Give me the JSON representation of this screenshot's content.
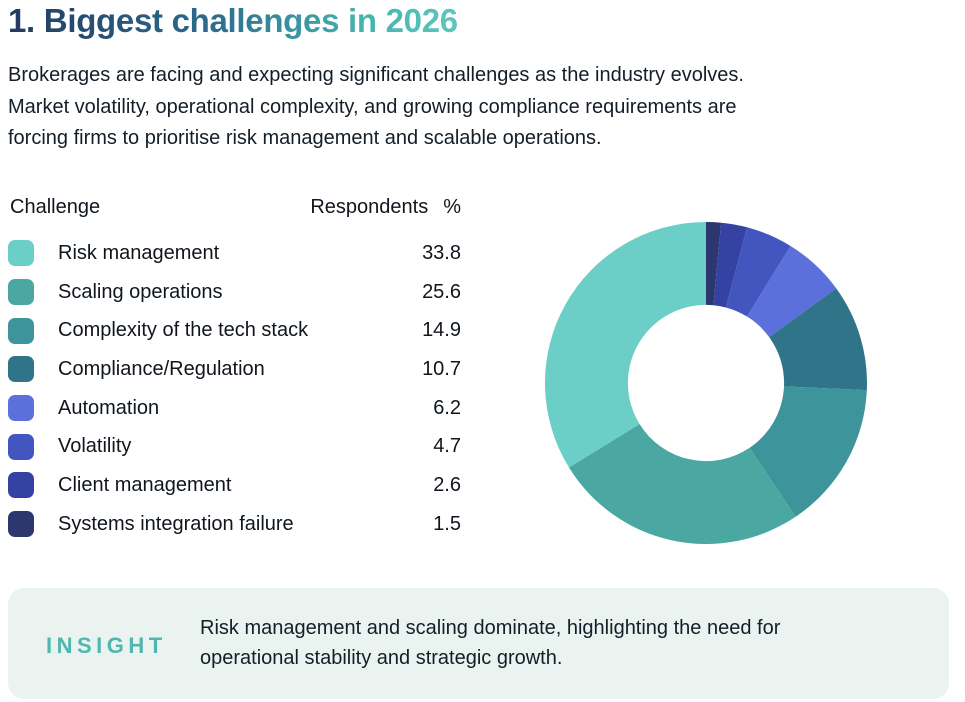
{
  "page": {
    "title": "1. Biggest challenges in 2026",
    "intro_lines": [
      "Brokerages are facing and expecting significant challenges as the industry evolves.",
      "Market volatility, operational complexity, and growing compliance requirements are",
      "forcing firms to prioritise risk management and scalable operations."
    ]
  },
  "table": {
    "headers": {
      "challenge": "Challenge",
      "respondents": "Respondents",
      "percent": "%"
    },
    "rows": [
      {
        "label": "Risk management",
        "value": "33.8"
      },
      {
        "label": "Scaling operations",
        "value": "25.6"
      },
      {
        "label": "Complexity of the tech stack",
        "value": "14.9"
      },
      {
        "label": "Compliance/Regulation",
        "value": "10.7"
      },
      {
        "label": "Automation",
        "value": "6.2"
      },
      {
        "label": "Volatility",
        "value": "4.7"
      },
      {
        "label": "Client management",
        "value": "2.6"
      },
      {
        "label": "Systems integration failure",
        "value": "1.5"
      }
    ]
  },
  "chart_data": {
    "type": "pie",
    "subtype": "donut",
    "title": "Biggest challenges in 2026",
    "categories": [
      "Risk management",
      "Scaling operations",
      "Complexity of the tech stack",
      "Compliance/Regulation",
      "Automation",
      "Volatility",
      "Client management",
      "Systems integration failure"
    ],
    "values": [
      33.8,
      25.6,
      14.9,
      10.7,
      6.2,
      4.7,
      2.6,
      1.5
    ],
    "colors": [
      "#6bcfc8",
      "#4ba7a1",
      "#3e949b",
      "#2f7488",
      "#5b70da",
      "#4355bf",
      "#3542a4",
      "#2c366f"
    ],
    "unit": "%",
    "inner_radius_ratio": 0.485,
    "start_angle_deg": 0,
    "direction": "clockwise",
    "draw_order": "smallest-first-clockwise-from-top",
    "legend_position": "left-table"
  },
  "insight": {
    "label": "INSIGHT",
    "lines": [
      "Risk management and scaling dominate, highlighting the need for",
      "operational stability and strategic growth."
    ]
  },
  "colors": {
    "title_gradient": [
      "#243a60",
      "#2b6c8e",
      "#5ec6bd"
    ],
    "insight_bg": "#ebf3f1",
    "insight_label": "#4fb7ae",
    "body_text": "#141e28"
  }
}
